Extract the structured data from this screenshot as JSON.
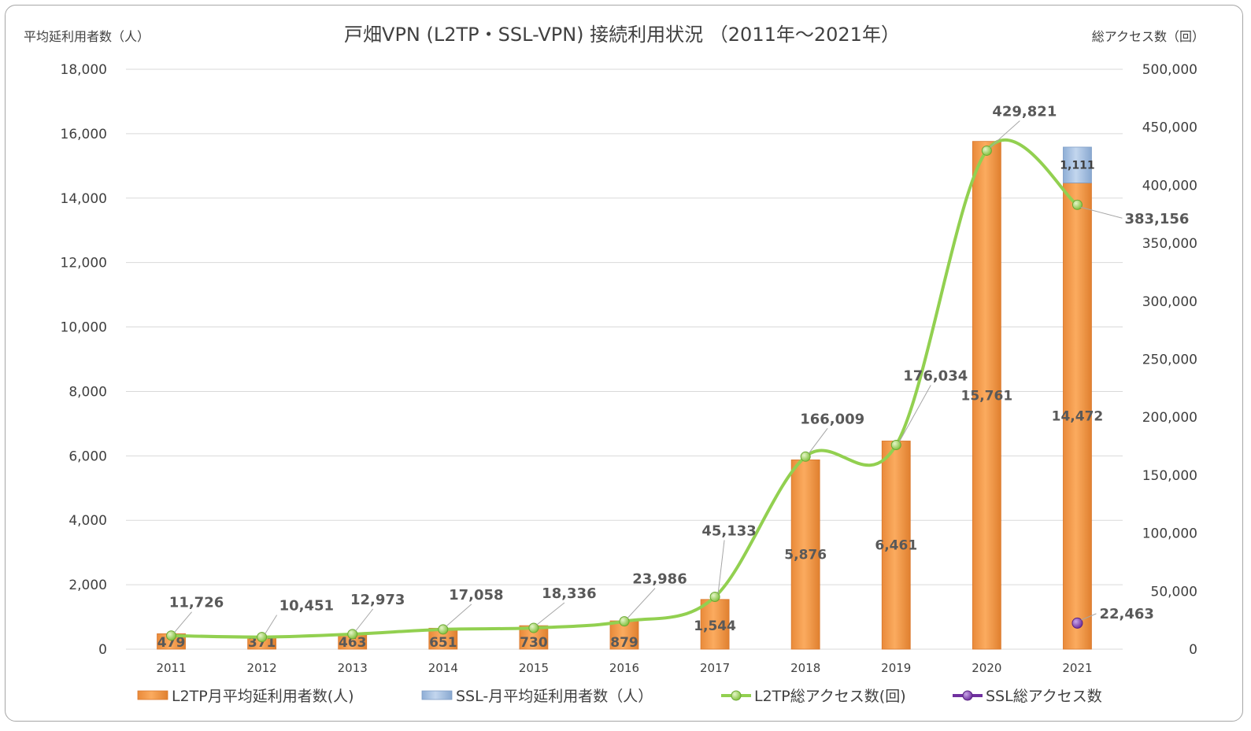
{
  "chart_data": {
    "type": "bar",
    "title": "戸畑VPN (L2TP・SSL-VPN) 接続利用状況 （2011年～2021年）",
    "y_left_label": "平均延利用者数（人）",
    "y_right_label": "総アクセス数（回）",
    "categories": [
      "2011",
      "2012",
      "2013",
      "2014",
      "2015",
      "2016",
      "2017",
      "2018",
      "2019",
      "2020",
      "2021"
    ],
    "y_left_ticks": [
      "0",
      "2,000",
      "4,000",
      "6,000",
      "8,000",
      "10,000",
      "12,000",
      "14,000",
      "16,000",
      "18,000"
    ],
    "y_right_ticks": [
      "0",
      "50,000",
      "100,000",
      "150,000",
      "200,000",
      "250,000",
      "300,000",
      "350,000",
      "400,000",
      "450,000",
      "500,000"
    ],
    "ylim_left": [
      0,
      18000
    ],
    "ylim_right": [
      0,
      500000
    ],
    "grid": true,
    "legend_position": "bottom",
    "series": [
      {
        "name": "L2TP月平均延利用者数(人)",
        "type": "bar",
        "axis": "left",
        "color": "#f79646",
        "values": [
          479,
          371,
          463,
          651,
          730,
          879,
          1544,
          5876,
          6461,
          15761,
          14472
        ],
        "labels": [
          "479",
          "371",
          "463",
          "651",
          "730",
          "879",
          "1,544",
          "5,876",
          "6,461",
          "15,761",
          "14,472"
        ]
      },
      {
        "name": "SSL-月平均延利用者数（人）",
        "type": "bar",
        "stacked": true,
        "axis": "left",
        "color": "#95b3d7",
        "values": [
          0,
          0,
          0,
          0,
          0,
          0,
          0,
          0,
          0,
          0,
          1111
        ],
        "labels": [
          "",
          "",
          "",
          "",
          "",
          "",
          "",
          "",
          "",
          "",
          "1,111"
        ]
      },
      {
        "name": "L2TP総アクセス数(回)",
        "type": "line",
        "axis": "right",
        "color": "#92d050",
        "values": [
          11726,
          10451,
          12973,
          17058,
          18336,
          23986,
          45133,
          166009,
          176034,
          429821,
          383156
        ],
        "labels": [
          "11,726",
          "10,451",
          "12,973",
          "17,058",
          "18,336",
          "23,986",
          "45,133",
          "166,009",
          "176,034",
          "429,821",
          "383,156"
        ]
      },
      {
        "name": "SSL総アクセス数",
        "type": "line",
        "axis": "right",
        "color": "#7030a0",
        "values": [
          null,
          null,
          null,
          null,
          null,
          null,
          null,
          null,
          null,
          null,
          22463
        ],
        "labels": [
          "",
          "",
          "",
          "",
          "",
          "",
          "",
          "",
          "",
          "",
          "22,463"
        ]
      }
    ]
  }
}
